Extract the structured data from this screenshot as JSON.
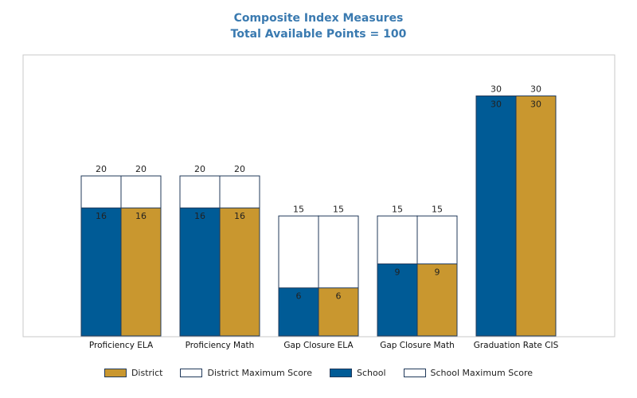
{
  "chart_data": {
    "type": "bar",
    "title": "Composite Index Measures",
    "subtitle": "Total Available Points = 100",
    "categories": [
      "Proficiency ELA",
      "Proficiency Math",
      "Gap Closure ELA",
      "Gap Closure Math",
      "Graduation Rate CIS"
    ],
    "series": [
      {
        "name": "School",
        "values": [
          16,
          16,
          6,
          9,
          30
        ],
        "max_values": [
          20,
          20,
          15,
          15,
          30
        ],
        "max_name": "School Maximum Score",
        "color": "#005b96"
      },
      {
        "name": "District",
        "values": [
          16,
          16,
          6,
          9,
          30
        ],
        "max_values": [
          20,
          20,
          15,
          15,
          30
        ],
        "max_name": "District Maximum Score",
        "color": "#c9972f"
      }
    ],
    "max_fill": "#ffffff",
    "ylim": [
      0,
      35
    ],
    "grid": false,
    "legend_position": "bottom"
  },
  "legend": [
    {
      "label": "District",
      "color": "#c9972f"
    },
    {
      "label": "District Maximum Score",
      "color": "#ffffff"
    },
    {
      "label": "School",
      "color": "#005b96"
    },
    {
      "label": "School Maximum Score",
      "color": "#ffffff"
    }
  ]
}
